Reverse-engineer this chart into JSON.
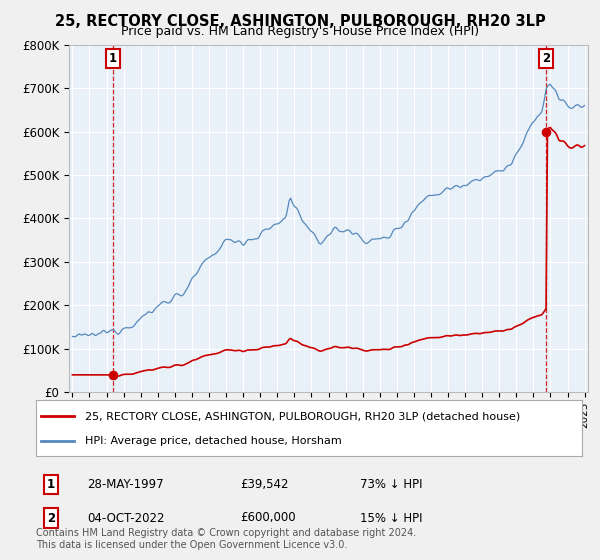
{
  "title": "25, RECTORY CLOSE, ASHINGTON, PULBOROUGH, RH20 3LP",
  "subtitle": "Price paid vs. HM Land Registry's House Price Index (HPI)",
  "legend_property": "25, RECTORY CLOSE, ASHINGTON, PULBOROUGH, RH20 3LP (detached house)",
  "legend_hpi": "HPI: Average price, detached house, Horsham",
  "footnote": "Contains HM Land Registry data © Crown copyright and database right 2024.\nThis data is licensed under the Open Government Licence v3.0.",
  "sale1_date": "28-MAY-1997",
  "sale1_price": 39542,
  "sale1_label": "£39,542",
  "sale1_hpi_pct": "73% ↓ HPI",
  "sale2_date": "04-OCT-2022",
  "sale2_price": 600000,
  "sale2_label": "£600,000",
  "sale2_hpi_pct": "15% ↓ HPI",
  "property_color": "#cc0000",
  "hpi_color": "#5588bb",
  "background_color": "#e8f0f8",
  "fig_background": "#f0f0f0",
  "grid_color": "#ffffff",
  "ylim": [
    0,
    800000
  ],
  "yticks": [
    0,
    100000,
    200000,
    300000,
    400000,
    500000,
    600000,
    700000,
    800000
  ],
  "ytick_labels": [
    "£0",
    "£100K",
    "£200K",
    "£300K",
    "£400K",
    "£500K",
    "£600K",
    "£700K",
    "£800K"
  ],
  "sale1_year": 1997.37,
  "sale2_year": 2022.75
}
